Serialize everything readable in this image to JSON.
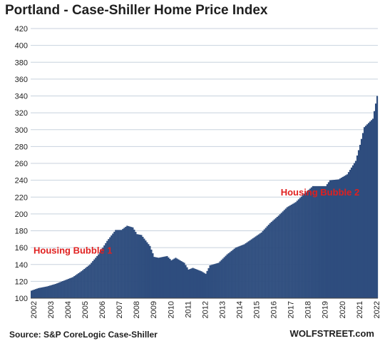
{
  "title": "Portland - Case-Shiller Home Price Index",
  "source": "Source: S&P CoreLogic Case-Shiller",
  "brand": "WOLFSTREET.com",
  "colors": {
    "bar": "#2e4d7e",
    "annotation": "#e0201f",
    "grid": "#c8d2de"
  },
  "chart_data": {
    "type": "bar",
    "title": "Portland - Case-Shiller Home Price Index",
    "xlabel": "",
    "ylabel": "",
    "ylim": [
      100,
      420
    ],
    "yticks": [
      100,
      120,
      140,
      160,
      180,
      200,
      220,
      240,
      260,
      280,
      300,
      320,
      340,
      360,
      380,
      400,
      420
    ],
    "xticks": [
      "2002",
      "2003",
      "2004",
      "2005",
      "2006",
      "2007",
      "2008",
      "2009",
      "2010",
      "2011",
      "2012",
      "2013",
      "2014",
      "2015",
      "2016",
      "2017",
      "2018",
      "2019",
      "2020",
      "2021",
      "2022"
    ],
    "grid": true,
    "legend": "none",
    "frequency": "monthly",
    "start": "2002-01",
    "end": "2022-03",
    "anchors": [
      [
        "2002-01",
        109
      ],
      [
        "2002-06",
        112
      ],
      [
        "2002-12",
        114
      ],
      [
        "2003-06",
        117
      ],
      [
        "2003-12",
        121
      ],
      [
        "2004-06",
        125
      ],
      [
        "2004-12",
        132
      ],
      [
        "2005-06",
        140
      ],
      [
        "2005-12",
        152
      ],
      [
        "2006-06",
        168
      ],
      [
        "2006-12",
        181
      ],
      [
        "2007-04",
        181
      ],
      [
        "2007-08",
        186
      ],
      [
        "2007-12",
        184
      ],
      [
        "2008-03",
        176
      ],
      [
        "2008-06",
        175
      ],
      [
        "2008-12",
        162
      ],
      [
        "2009-03",
        149
      ],
      [
        "2009-06",
        148
      ],
      [
        "2009-12",
        150
      ],
      [
        "2010-03",
        145
      ],
      [
        "2010-06",
        148
      ],
      [
        "2010-12",
        142
      ],
      [
        "2011-03",
        134
      ],
      [
        "2011-06",
        136
      ],
      [
        "2011-12",
        132
      ],
      [
        "2012-03",
        129
      ],
      [
        "2012-06",
        139
      ],
      [
        "2012-12",
        142
      ],
      [
        "2013-06",
        152
      ],
      [
        "2013-12",
        160
      ],
      [
        "2014-06",
        164
      ],
      [
        "2014-12",
        171
      ],
      [
        "2015-06",
        178
      ],
      [
        "2015-12",
        189
      ],
      [
        "2016-06",
        198
      ],
      [
        "2016-12",
        208
      ],
      [
        "2017-06",
        214
      ],
      [
        "2017-12",
        224
      ],
      [
        "2018-06",
        233
      ],
      [
        "2018-12",
        233
      ],
      [
        "2019-03",
        233
      ],
      [
        "2019-06",
        240
      ],
      [
        "2019-12",
        241
      ],
      [
        "2020-06",
        247
      ],
      [
        "2020-12",
        263
      ],
      [
        "2021-03",
        282
      ],
      [
        "2021-06",
        303
      ],
      [
        "2021-12",
        313
      ],
      [
        "2022-03",
        340
      ]
    ],
    "annotations": [
      {
        "text": "Housing Bubble 1",
        "date": "2002-03",
        "value": 153
      },
      {
        "text": "Housing Bubble 2",
        "date": "2016-08",
        "value": 222
      }
    ]
  }
}
